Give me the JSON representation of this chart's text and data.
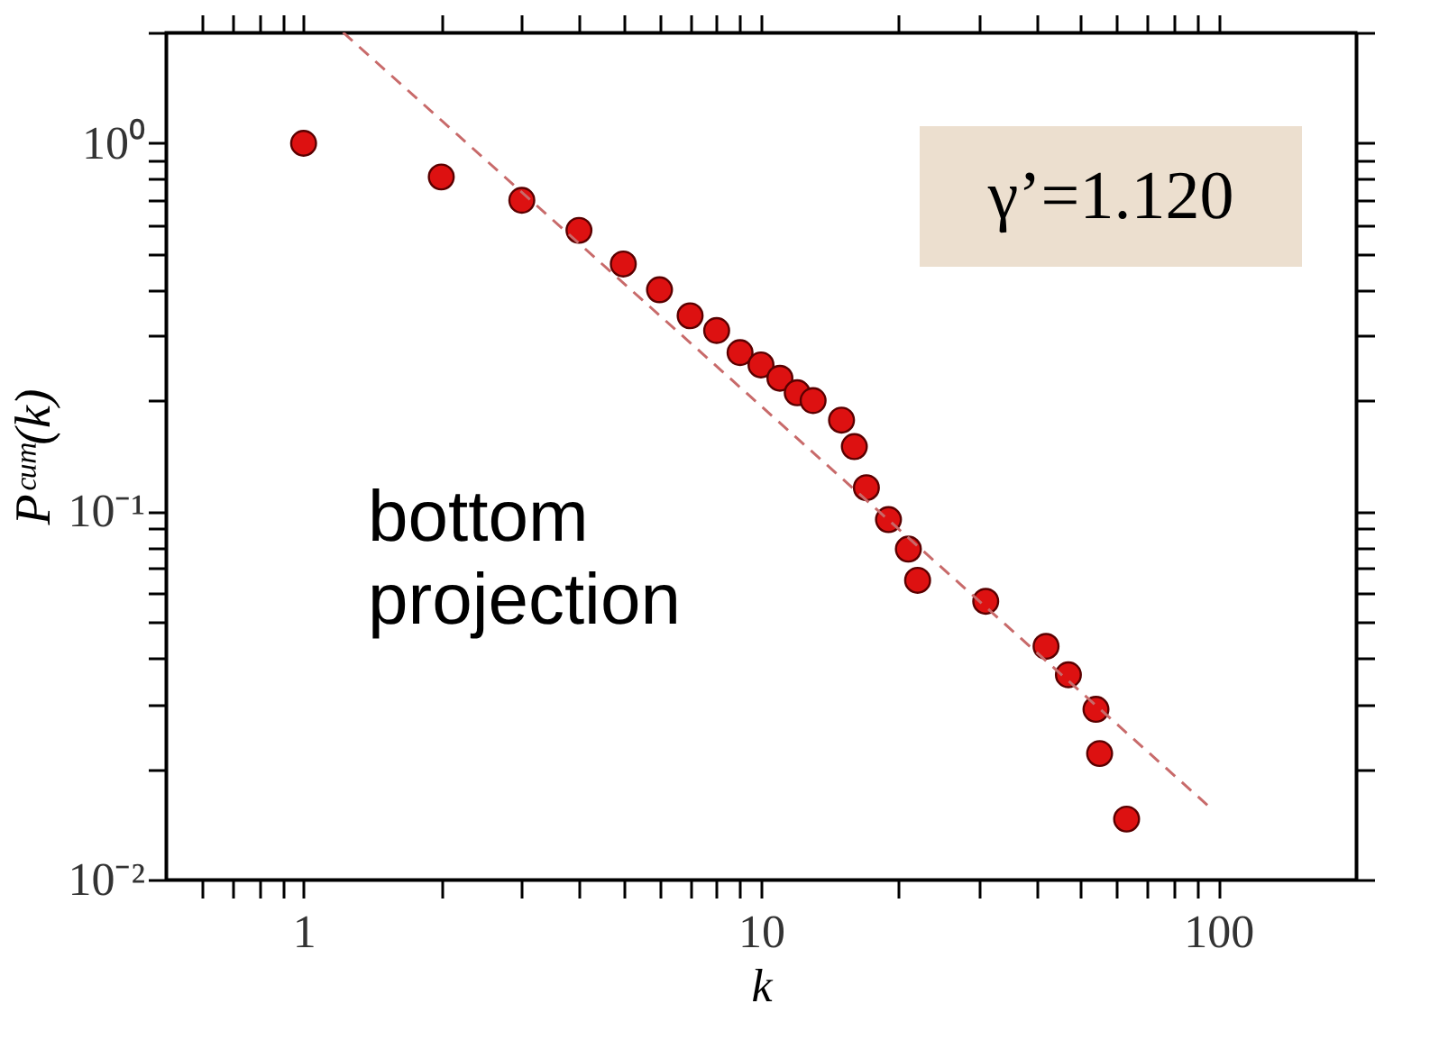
{
  "chart_data": {
    "type": "scatter",
    "xlabel": "k",
    "ylabel": "Pᶜᵘᵐ(k)",
    "log": "xy",
    "grid": false,
    "xlim": [
      0.5,
      200
    ],
    "ylim": [
      0.01,
      2
    ],
    "xticks": [
      {
        "value": 0.6,
        "label": null
      },
      {
        "value": 0.7,
        "label": null
      },
      {
        "value": 0.8,
        "label": null
      },
      {
        "value": 0.9,
        "label": null
      },
      1,
      {
        "value": 2,
        "label": null
      },
      {
        "value": 3,
        "label": null
      },
      {
        "value": 4,
        "label": null
      },
      {
        "value": 5,
        "label": null
      },
      {
        "value": 6,
        "label": null
      },
      {
        "value": 7,
        "label": null
      },
      {
        "value": 8,
        "label": null
      },
      {
        "value": 9,
        "label": null
      },
      10,
      {
        "value": 20,
        "label": null
      },
      {
        "value": 30,
        "label": null
      },
      {
        "value": 40,
        "label": null
      },
      {
        "value": 50,
        "label": null
      },
      {
        "value": 60,
        "label": null
      },
      {
        "value": 70,
        "label": null
      },
      {
        "value": 80,
        "label": null
      },
      {
        "value": 90,
        "label": null
      },
      100
    ],
    "yticks": [
      {
        "value": 0.02,
        "label": null
      },
      {
        "value": 0.03,
        "label": null
      },
      {
        "value": 0.04,
        "label": null
      },
      {
        "value": 0.05,
        "label": null
      },
      {
        "value": 0.06,
        "label": null
      },
      {
        "value": 0.07,
        "label": null
      },
      {
        "value": 0.08,
        "label": null
      },
      {
        "value": 0.09,
        "label": null
      },
      {
        "value": 0.01,
        "label": "10⁻²"
      },
      {
        "value": 0.1,
        "label": "10⁻¹"
      },
      {
        "value": 0.2,
        "label": null
      },
      {
        "value": 0.3,
        "label": null
      },
      {
        "value": 0.4,
        "label": null
      },
      {
        "value": 0.5,
        "label": null
      },
      {
        "value": 0.6,
        "label": null
      },
      {
        "value": 0.7,
        "label": null
      },
      {
        "value": 0.8,
        "label": null
      },
      {
        "value": 0.9,
        "label": null
      },
      {
        "value": 1,
        "label": "10⁰"
      },
      {
        "value": 2,
        "label": null
      }
    ],
    "annotations": [
      "γ’=1.120",
      "bottom\nprojection"
    ],
    "series": [
      {
        "marker": "circle",
        "color": "#dd1111",
        "x": [
          1,
          2,
          3,
          4,
          5,
          6,
          7,
          8,
          9,
          10,
          11,
          12,
          13,
          15,
          16,
          17,
          19,
          21,
          22,
          31,
          42,
          47,
          54,
          55,
          63
        ],
        "values": [
          1.0,
          0.81,
          0.7,
          0.58,
          0.47,
          0.4,
          0.34,
          0.31,
          0.27,
          0.25,
          0.23,
          0.21,
          0.2,
          0.177,
          0.15,
          0.116,
          0.095,
          0.079,
          0.065,
          0.057,
          0.043,
          0.036,
          0.029,
          0.022,
          0.0146
        ]
      },
      {
        "type": "line",
        "line_style": "dashed",
        "color": "#c86a6a",
        "x": [
          1.22,
          97
        ],
        "values": [
          2,
          0.0155
        ]
      }
    ]
  }
}
